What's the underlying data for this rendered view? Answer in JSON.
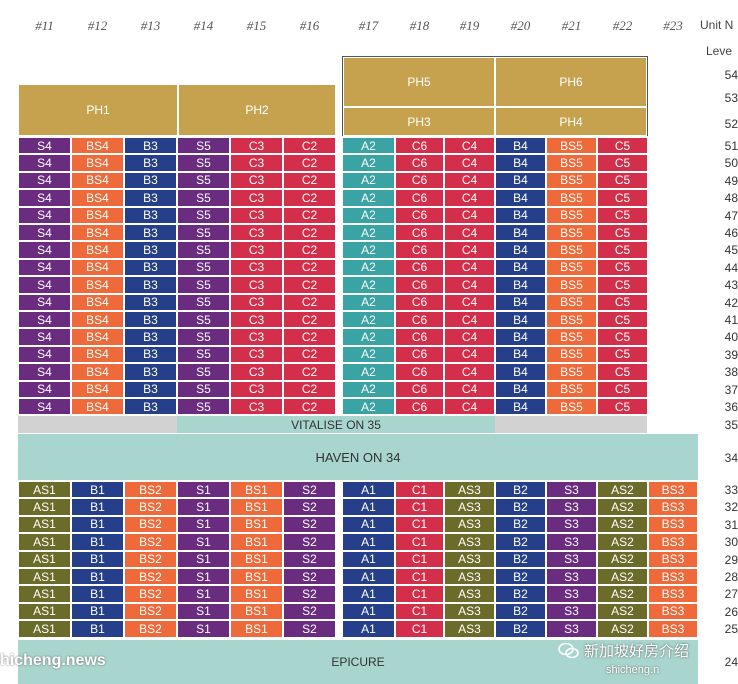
{
  "unit_numbers": [
    "#11",
    "#12",
    "#13",
    "#14",
    "#15",
    "#16",
    "#17",
    "#18",
    "#19",
    "#20",
    "#21",
    "#22",
    "#23"
  ],
  "unit_header_label": "Unit N",
  "level_header_label": "Leve",
  "penthouses": {
    "ph1": "PH1",
    "ph2": "PH2",
    "ph3": "PH3",
    "ph4": "PH4",
    "ph5": "PH5",
    "ph6": "PH6"
  },
  "ph_levels": {
    "l54": "54",
    "l53": "53",
    "l52": "52"
  },
  "upper_levels": [
    "51",
    "50",
    "49",
    "48",
    "47",
    "46",
    "45",
    "44",
    "43",
    "42",
    "41",
    "40",
    "39",
    "38",
    "37",
    "36"
  ],
  "upper_row_units": [
    "S4",
    "BS4",
    "B3",
    "S5",
    "C3",
    "C2",
    "A2",
    "C6",
    "C4",
    "B4",
    "BS5",
    "C5"
  ],
  "upper_row_colors": [
    "#6a2c7f",
    "#ee6a3a",
    "#263f8a",
    "#6a2c7f",
    "#d42f4a",
    "#d42f4a",
    "#3aa3a3",
    "#d42f4a",
    "#d42f4a",
    "#263f8a",
    "#ee6a3a",
    "#d42f4a"
  ],
  "vitalise": {
    "label": "VITALISE ON 35",
    "level": "35"
  },
  "haven": {
    "label": "HAVEN ON 34",
    "level": "34"
  },
  "lower_levels": [
    "33",
    "32",
    "31",
    "30",
    "29",
    "28",
    "27",
    "26",
    "25"
  ],
  "lower_row_units": [
    "AS1",
    "B1",
    "BS2",
    "S1",
    "BS1",
    "S2",
    "A1",
    "C1",
    "AS3",
    "B2",
    "S3",
    "AS2",
    "BS3"
  ],
  "lower_row_colors": [
    "#6b6b2a",
    "#263f8a",
    "#ee6a3a",
    "#6a2c7f",
    "#ee6a3a",
    "#6a2c7f",
    "#263f8a",
    "#d42f4a",
    "#6b6b2a",
    "#263f8a",
    "#6a2c7f",
    "#6b6b2a",
    "#ee6a3a"
  ],
  "epicure": {
    "label": "EPICURE",
    "level": "24"
  },
  "watermark_left": "hicheng.news",
  "watermark_right": "新加坡好房介绍",
  "watermark_right_sub": "shicheng.n"
}
